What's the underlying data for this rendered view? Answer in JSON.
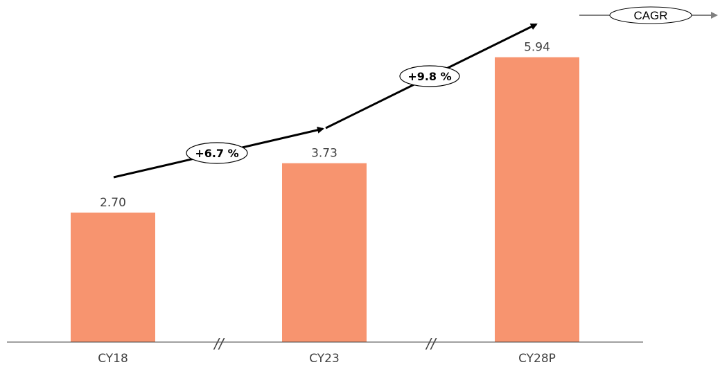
{
  "chart_data": {
    "type": "bar",
    "categories": [
      "CY18",
      "CY23",
      "CY28P"
    ],
    "values": [
      2.7,
      3.73,
      5.94
    ],
    "value_labels": [
      "2.70",
      "3.73",
      "5.94"
    ],
    "ylim": [
      0,
      6.7
    ],
    "bar_color": "#f7946f",
    "axis_breaks": [
      "//",
      "//"
    ],
    "annotations": {
      "cagr": [
        {
          "from": "CY18",
          "to": "CY23",
          "label": "+6.7 %"
        },
        {
          "from": "CY23",
          "to": "CY28P",
          "label": "+9.8 %"
        }
      ]
    },
    "legend": {
      "label": "CAGR",
      "placement": "top-right"
    }
  }
}
